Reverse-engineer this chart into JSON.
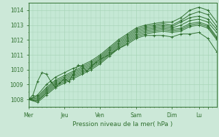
{
  "xlabel": "Pression niveau de la mer( hPa )",
  "bg_color": "#cce8d8",
  "plot_bg_color": "#c5e8d5",
  "line_color": "#2d6e2d",
  "grid_color": "#a8d4b8",
  "tick_label_color": "#2d6e2d",
  "ylim": [
    1007.5,
    1014.5
  ],
  "xlim": [
    0,
    126
  ],
  "day_positions": [
    0,
    24,
    48,
    72,
    96,
    114,
    120
  ],
  "day_labels": [
    "Mer",
    "Jeu",
    "Ven",
    "Sam",
    "Dim",
    "Lu",
    ""
  ],
  "series": [
    {
      "pts": [
        [
          0,
          1008.0
        ],
        [
          6,
          1008.3
        ],
        [
          12,
          1009.0
        ],
        [
          18,
          1009.5
        ],
        [
          24,
          1009.8
        ],
        [
          30,
          1010.1
        ],
        [
          36,
          1010.3
        ],
        [
          42,
          1010.6
        ],
        [
          48,
          1011.0
        ],
        [
          54,
          1011.5
        ],
        [
          60,
          1012.0
        ],
        [
          66,
          1012.4
        ],
        [
          72,
          1012.8
        ],
        [
          78,
          1013.0
        ],
        [
          84,
          1013.1
        ],
        [
          90,
          1013.2
        ],
        [
          96,
          1013.2
        ],
        [
          102,
          1013.5
        ],
        [
          108,
          1014.0
        ],
        [
          114,
          1014.2
        ],
        [
          120,
          1014.0
        ],
        [
          126,
          1013.2
        ]
      ]
    },
    {
      "pts": [
        [
          0,
          1008.0
        ],
        [
          6,
          1008.2
        ],
        [
          12,
          1008.8
        ],
        [
          18,
          1009.3
        ],
        [
          24,
          1009.6
        ],
        [
          30,
          1009.9
        ],
        [
          36,
          1010.2
        ],
        [
          42,
          1010.5
        ],
        [
          48,
          1010.9
        ],
        [
          54,
          1011.4
        ],
        [
          60,
          1011.9
        ],
        [
          66,
          1012.3
        ],
        [
          72,
          1012.7
        ],
        [
          78,
          1012.9
        ],
        [
          84,
          1013.0
        ],
        [
          90,
          1013.1
        ],
        [
          96,
          1013.0
        ],
        [
          102,
          1013.3
        ],
        [
          108,
          1013.7
        ],
        [
          114,
          1013.9
        ],
        [
          120,
          1013.7
        ],
        [
          126,
          1012.9
        ]
      ]
    },
    {
      "pts": [
        [
          0,
          1008.0
        ],
        [
          6,
          1008.1
        ],
        [
          12,
          1008.7
        ],
        [
          18,
          1009.2
        ],
        [
          24,
          1009.5
        ],
        [
          30,
          1009.8
        ],
        [
          36,
          1010.1
        ],
        [
          42,
          1010.4
        ],
        [
          48,
          1010.8
        ],
        [
          54,
          1011.3
        ],
        [
          60,
          1011.8
        ],
        [
          66,
          1012.2
        ],
        [
          72,
          1012.6
        ],
        [
          78,
          1012.8
        ],
        [
          84,
          1012.9
        ],
        [
          90,
          1013.0
        ],
        [
          96,
          1012.9
        ],
        [
          102,
          1013.2
        ],
        [
          108,
          1013.5
        ],
        [
          114,
          1013.6
        ],
        [
          120,
          1013.4
        ],
        [
          126,
          1012.7
        ]
      ]
    },
    {
      "pts": [
        [
          0,
          1008.0
        ],
        [
          6,
          1008.0
        ],
        [
          12,
          1008.6
        ],
        [
          18,
          1009.1
        ],
        [
          24,
          1009.4
        ],
        [
          30,
          1009.7
        ],
        [
          36,
          1010.0
        ],
        [
          42,
          1010.3
        ],
        [
          48,
          1010.7
        ],
        [
          54,
          1011.2
        ],
        [
          60,
          1011.7
        ],
        [
          66,
          1012.1
        ],
        [
          72,
          1012.5
        ],
        [
          78,
          1012.7
        ],
        [
          84,
          1012.8
        ],
        [
          90,
          1012.9
        ],
        [
          96,
          1012.8
        ],
        [
          102,
          1013.0
        ],
        [
          108,
          1013.3
        ],
        [
          114,
          1013.4
        ],
        [
          120,
          1013.2
        ],
        [
          126,
          1012.5
        ]
      ]
    },
    {
      "pts": [
        [
          0,
          1008.0
        ],
        [
          6,
          1007.9
        ],
        [
          12,
          1008.5
        ],
        [
          18,
          1009.0
        ],
        [
          24,
          1009.3
        ],
        [
          30,
          1009.6
        ],
        [
          36,
          1009.9
        ],
        [
          42,
          1010.2
        ],
        [
          48,
          1010.6
        ],
        [
          54,
          1011.1
        ],
        [
          60,
          1011.6
        ],
        [
          66,
          1012.0
        ],
        [
          72,
          1012.4
        ],
        [
          78,
          1012.6
        ],
        [
          84,
          1012.7
        ],
        [
          90,
          1012.8
        ],
        [
          96,
          1012.7
        ],
        [
          102,
          1012.8
        ],
        [
          108,
          1013.1
        ],
        [
          114,
          1013.2
        ],
        [
          120,
          1013.0
        ],
        [
          126,
          1012.2
        ]
      ]
    },
    {
      "pts": [
        [
          0,
          1008.0
        ],
        [
          6,
          1007.9
        ],
        [
          12,
          1008.4
        ],
        [
          18,
          1008.9
        ],
        [
          24,
          1009.2
        ],
        [
          30,
          1009.5
        ],
        [
          36,
          1009.8
        ],
        [
          42,
          1010.1
        ],
        [
          48,
          1010.5
        ],
        [
          54,
          1011.0
        ],
        [
          60,
          1011.5
        ],
        [
          66,
          1011.9
        ],
        [
          72,
          1012.3
        ],
        [
          78,
          1012.5
        ],
        [
          84,
          1012.6
        ],
        [
          90,
          1012.7
        ],
        [
          96,
          1012.6
        ],
        [
          102,
          1012.7
        ],
        [
          108,
          1013.0
        ],
        [
          114,
          1013.1
        ],
        [
          120,
          1012.9
        ],
        [
          126,
          1012.1
        ]
      ]
    },
    {
      "pts": [
        [
          0,
          1008.0
        ],
        [
          6,
          1007.8
        ],
        [
          12,
          1008.3
        ],
        [
          18,
          1008.8
        ],
        [
          24,
          1009.1
        ],
        [
          30,
          1009.4
        ],
        [
          36,
          1009.7
        ],
        [
          42,
          1010.0
        ],
        [
          48,
          1010.4
        ],
        [
          54,
          1010.9
        ],
        [
          60,
          1011.4
        ],
        [
          66,
          1011.8
        ],
        [
          72,
          1012.2
        ],
        [
          78,
          1012.4
        ],
        [
          84,
          1012.5
        ],
        [
          90,
          1012.6
        ],
        [
          96,
          1012.5
        ],
        [
          102,
          1012.6
        ],
        [
          108,
          1012.9
        ],
        [
          114,
          1013.0
        ],
        [
          120,
          1012.8
        ],
        [
          126,
          1012.0
        ]
      ]
    },
    {
      "pts": [
        [
          0,
          1008.0
        ],
        [
          3,
          1008.3
        ],
        [
          6,
          1009.2
        ],
        [
          9,
          1009.8
        ],
        [
          12,
          1009.7
        ],
        [
          15,
          1009.2
        ],
        [
          18,
          1008.8
        ],
        [
          21,
          1009.1
        ],
        [
          24,
          1009.4
        ],
        [
          27,
          1009.2
        ],
        [
          30,
          1009.7
        ],
        [
          33,
          1010.3
        ],
        [
          36,
          1010.2
        ],
        [
          39,
          1009.9
        ],
        [
          42,
          1010.2
        ],
        [
          45,
          1010.5
        ],
        [
          48,
          1010.7
        ],
        [
          54,
          1011.0
        ],
        [
          60,
          1011.4
        ],
        [
          66,
          1011.7
        ],
        [
          72,
          1012.1
        ],
        [
          78,
          1012.3
        ],
        [
          84,
          1012.3
        ],
        [
          90,
          1012.3
        ],
        [
          96,
          1012.2
        ],
        [
          102,
          1012.4
        ],
        [
          108,
          1012.4
        ],
        [
          114,
          1012.5
        ],
        [
          120,
          1012.1
        ],
        [
          126,
          1011.2
        ]
      ]
    }
  ]
}
